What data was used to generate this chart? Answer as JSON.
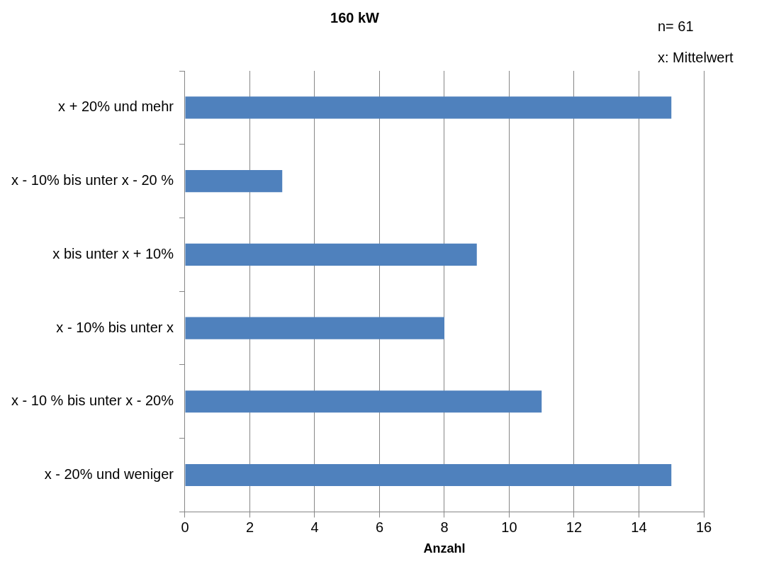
{
  "chart_data": {
    "type": "bar",
    "orientation": "horizontal",
    "title": "160 kW",
    "xlabel": "Anzahl",
    "categories": [
      "x + 20% und mehr",
      "x - 10% bis unter x - 20 %",
      "x bis unter x + 10%",
      "x - 10% bis unter x",
      "x - 10 % bis unter x - 20%",
      "x - 20% und weniger"
    ],
    "values": [
      15,
      3,
      9,
      8,
      11,
      15
    ],
    "color": "#4f81bd",
    "xlim": [
      0,
      16
    ],
    "xticks": [
      0,
      2,
      4,
      6,
      8,
      10,
      12,
      14,
      16
    ],
    "grid": "x",
    "legend": false,
    "annotations": [
      "n= 61",
      "x: Mittelwert"
    ]
  }
}
